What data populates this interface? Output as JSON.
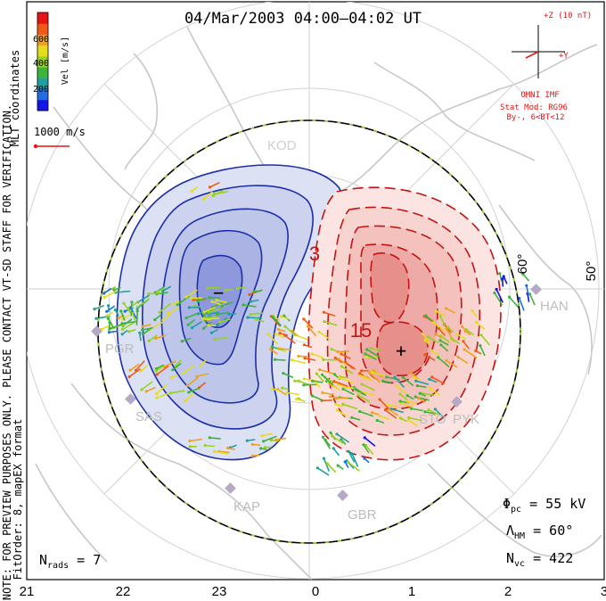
{
  "title": "04/Mar/2003 04:00–04:02 UT",
  "side_notes": {
    "coords": "MLT coordinates",
    "note": "NOTE: FOR PREVIEW PURPOSES ONLY. PLEASE CONTACT VT-SD STAFF FOR VERIFICATION.",
    "fit": "FitOrder: 8, mapEX format"
  },
  "color_scale": {
    "label": "Vel [m/s]",
    "ticks": [
      "200",
      "400",
      "600"
    ],
    "colors": [
      "#1414e6",
      "#1e6ee6",
      "#1fa0a0",
      "#3cb43c",
      "#96d21e",
      "#e6dc1e",
      "#f0a01e",
      "#f05a14",
      "#e61414"
    ]
  },
  "reference_vector": {
    "label": "1000 m/s",
    "color": "#e61414"
  },
  "imf": {
    "scale": "+Z (10 nT)",
    "axis_y": "+Y",
    "source": "OMNI IMF",
    "model": "Stat Mod: RG96",
    "condition": "By-, 6<BT<12",
    "color": "#e61414"
  },
  "grid": {
    "lat_labels": [
      "60°",
      "50°"
    ],
    "boundary_color": "#000000",
    "boundary_dash": "#9bd23c"
  },
  "stations": [
    "PGR",
    "SAS",
    "KAP",
    "GBR",
    "STO",
    "PYK",
    "HAN",
    "KOD"
  ],
  "stats": {
    "phi_sym": "Φ",
    "phi_sub": "pc",
    "phi_val": " = 55 kV",
    "lambda_sym": "Λ",
    "lambda_sub": "HM",
    "lambda_val": " = 60°",
    "nvc_sym": "N",
    "nvc_sub": "vc",
    "nvc_val": " = 422",
    "nrad_sym": "N",
    "nrad_sub": "rads",
    "nrad_val": " = 7"
  },
  "contour_labels": {
    "neg_min": "−",
    "pos_max": "+",
    "label_3": "3",
    "label_15": "15"
  },
  "chart_data": {
    "type": "polar convection map",
    "xaxis": {
      "label": "MLT",
      "ticks": [
        "21",
        "22",
        "23",
        "0",
        "1",
        "2",
        "3"
      ]
    },
    "potential": {
      "cross_polar_cap_kV": 55,
      "neg_cell_color": "#3040c0",
      "pos_cell_color": "#d01818"
    },
    "heppner_maynard_boundary_deg": 60,
    "num_vectors": 422,
    "num_radars": 7
  }
}
